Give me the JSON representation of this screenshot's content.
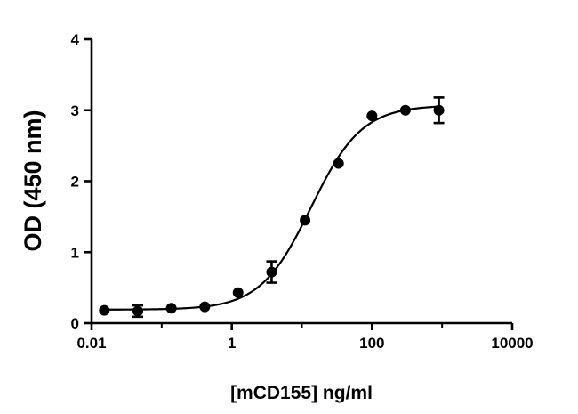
{
  "chart_data": {
    "type": "scatter",
    "xlabel": "[mCD155] ng/ml",
    "ylabel": "OD (450 nm)",
    "x_scale": "log",
    "xlim": [
      0.01,
      10000
    ],
    "ylim": [
      0,
      4
    ],
    "x_ticks": [
      {
        "value": 0.01,
        "label": "0.01"
      },
      {
        "value": 1,
        "label": "1"
      },
      {
        "value": 100,
        "label": "100"
      },
      {
        "value": 10000,
        "label": "10000"
      }
    ],
    "y_ticks": [
      {
        "value": 0,
        "label": "0"
      },
      {
        "value": 1,
        "label": "1"
      },
      {
        "value": 2,
        "label": "2"
      },
      {
        "value": 3,
        "label": "3"
      },
      {
        "value": 4,
        "label": "4"
      }
    ],
    "grid": false,
    "series": [
      {
        "points": [
          {
            "x": 0.0152,
            "y": 0.18,
            "err": 0
          },
          {
            "x": 0.0457,
            "y": 0.17,
            "err": 0.08
          },
          {
            "x": 0.137,
            "y": 0.21,
            "err": 0
          },
          {
            "x": 0.412,
            "y": 0.23,
            "err": 0
          },
          {
            "x": 1.23,
            "y": 0.43,
            "err": 0
          },
          {
            "x": 3.7,
            "y": 0.72,
            "err": 0.15
          },
          {
            "x": 11.1,
            "y": 1.45,
            "err": 0
          },
          {
            "x": 33.3,
            "y": 2.25,
            "err": 0
          },
          {
            "x": 100,
            "y": 2.92,
            "err": 0
          },
          {
            "x": 300,
            "y": 3.0,
            "err": 0
          },
          {
            "x": 900,
            "y": 3.0,
            "err": 0.18
          }
        ]
      }
    ],
    "fit": {
      "bottom": 0.19,
      "top": 3.07,
      "ec50": 13.5,
      "hill": 1.2
    }
  }
}
